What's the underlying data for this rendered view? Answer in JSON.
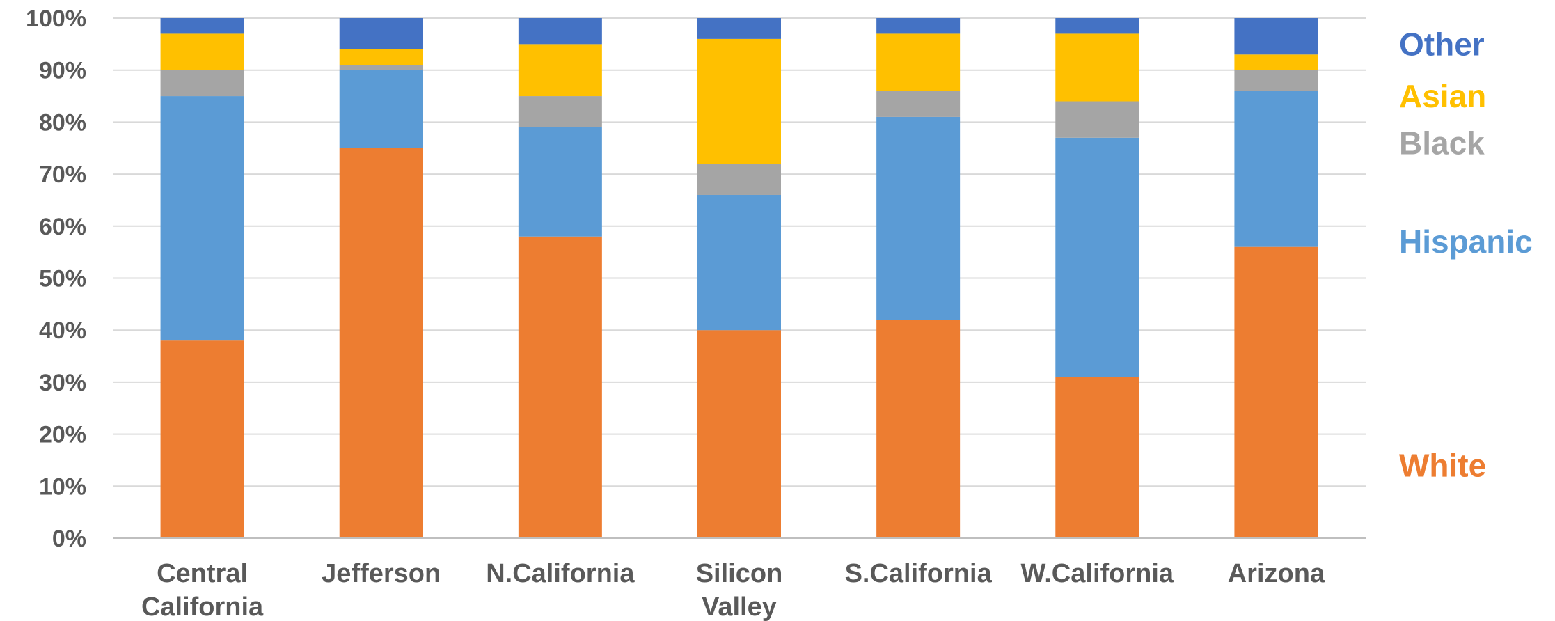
{
  "chart_data": {
    "type": "bar",
    "stacked": true,
    "categories": [
      "Central California",
      "Jefferson",
      "N.California",
      "Silicon Valley",
      "S.California",
      "W.California",
      "Arizona"
    ],
    "series": [
      {
        "name": "White",
        "color": "#ED7D31",
        "values": [
          38,
          75,
          58,
          40,
          42,
          31,
          56
        ]
      },
      {
        "name": "Hispanic",
        "color": "#5B9BD5",
        "values": [
          47,
          15,
          21,
          26,
          39,
          46,
          30
        ]
      },
      {
        "name": "Black",
        "color": "#A5A5A5",
        "values": [
          5,
          1,
          6,
          6,
          5,
          7,
          4
        ]
      },
      {
        "name": "Asian",
        "color": "#FFC000",
        "values": [
          7,
          3,
          10,
          24,
          11,
          13,
          3
        ]
      },
      {
        "name": "Other",
        "color": "#4472C4",
        "values": [
          3,
          6,
          5,
          4,
          3,
          3,
          7
        ]
      }
    ],
    "y_ticks": [
      "0%",
      "10%",
      "20%",
      "30%",
      "40%",
      "50%",
      "60%",
      "70%",
      "80%",
      "90%",
      "100%"
    ],
    "ylim": [
      0,
      100
    ],
    "grid": true,
    "legend": {
      "placement": "right",
      "entries": [
        {
          "name": "Other",
          "color": "#4472C4",
          "anchor_value": 95
        },
        {
          "name": "Asian",
          "color": "#FFC000",
          "anchor_value": 85
        },
        {
          "name": "Black",
          "color": "#A5A5A5",
          "anchor_value": 76
        },
        {
          "name": "Hispanic",
          "color": "#5B9BD5",
          "anchor_value": 57
        },
        {
          "name": "White",
          "color": "#ED7D31",
          "anchor_value": 14
        }
      ]
    }
  }
}
